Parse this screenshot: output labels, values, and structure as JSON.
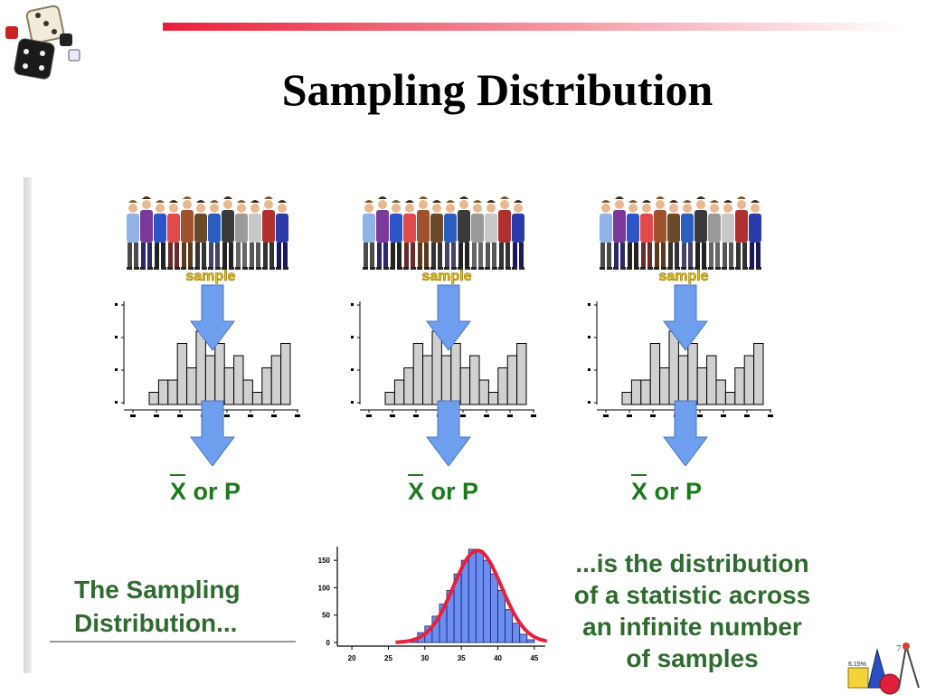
{
  "slide": {
    "title": "Sampling Distribution",
    "accent_color": "#e8203a",
    "text_color": "#2e6b2e",
    "arrow_color": "#6e9eee"
  },
  "samples": [
    {
      "people_label": "sample",
      "statistic_label": "X or P"
    },
    {
      "people_label": "sample",
      "statistic_label": "X or P"
    },
    {
      "people_label": "sample",
      "statistic_label": "X or P"
    }
  ],
  "left_caption": {
    "line1": "The Sampling",
    "line2": "Distribution..."
  },
  "right_caption": {
    "line1": "...is the distribution",
    "line2": "of a statistic across",
    "line3": "an infinite number",
    "line4": "of samples"
  },
  "corner_icon": {
    "label": "6.15%"
  },
  "chart_data": [
    {
      "type": "bar",
      "title": "",
      "xlabel": "",
      "ylabel": "",
      "values": [
        1,
        2,
        2,
        5,
        3,
        6,
        4,
        5,
        3,
        4,
        2,
        1,
        3,
        4,
        5
      ]
    },
    {
      "type": "bar",
      "title": "",
      "xlabel": "",
      "ylabel": "",
      "values": [
        1,
        2,
        3,
        5,
        4,
        6,
        4,
        5,
        3,
        4,
        2,
        1,
        3,
        4,
        5
      ]
    },
    {
      "type": "bar",
      "title": "",
      "xlabel": "",
      "ylabel": "",
      "values": [
        1,
        2,
        2,
        5,
        3,
        6,
        4,
        5,
        3,
        4,
        2,
        1,
        3,
        4,
        5
      ]
    },
    {
      "type": "bar",
      "title": "",
      "xlabel": "",
      "ylabel": "",
      "x_ticks": [
        "20",
        "25",
        "30",
        "35",
        "40",
        "45"
      ],
      "y_ticks": [
        "0",
        "50",
        "100",
        "150"
      ],
      "ylim": [
        0,
        175
      ],
      "bin_centers": [
        28.5,
        29.5,
        30.5,
        31.5,
        32.5,
        33.5,
        34.5,
        35.5,
        36.5,
        37.5,
        38.5,
        39.5,
        40.5,
        41.5,
        42.5,
        43.5,
        44.5
      ],
      "values": [
        5,
        18,
        30,
        48,
        70,
        95,
        125,
        150,
        170,
        168,
        150,
        125,
        95,
        60,
        35,
        15,
        5
      ],
      "overlay": "normal curve"
    }
  ]
}
